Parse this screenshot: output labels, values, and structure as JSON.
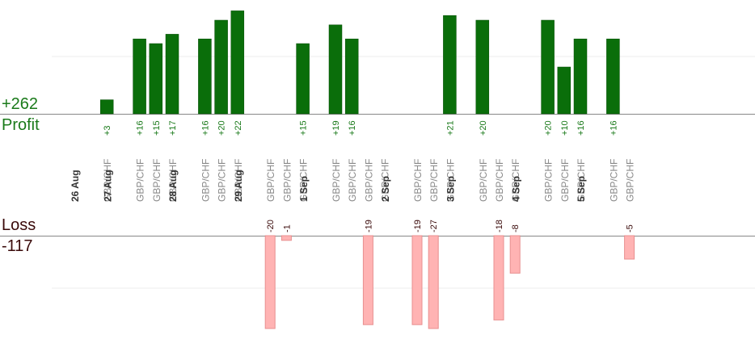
{
  "summary": {
    "profit_label": "Profit",
    "profit_total": "+262",
    "loss_label": "Loss",
    "loss_total": "-117"
  },
  "colors": {
    "profit_bar": "#0a6e0a",
    "profit_text": "#1a7a1a",
    "loss_bar": "#ffb3b3",
    "loss_bar_border": "#e88f8f",
    "loss_text": "#3a0a0a",
    "date_label": "#333333",
    "pair_label": "#888888",
    "axis": "#888888",
    "grid": "#eeeeee"
  },
  "chart_data": {
    "type": "bar",
    "profit_axis_max": 20,
    "loss_axis_max": 20,
    "days": [
      {
        "date": "26 Aug",
        "trades": [
          {
            "pair": "GBP/CHF",
            "profit": 3
          }
        ]
      },
      {
        "date": "27 Aug",
        "trades": [
          {
            "pair": "GBP/CHF",
            "profit": 16
          },
          {
            "pair": "GBP/CHF",
            "profit": 15
          },
          {
            "pair": "GBP/CHF",
            "profit": 17
          }
        ]
      },
      {
        "date": "28 Aug",
        "trades": [
          {
            "pair": "GBP/CHF",
            "profit": 16
          },
          {
            "pair": "GBP/CHF",
            "profit": 20
          },
          {
            "pair": "GBP/CHF",
            "profit": 22
          }
        ]
      },
      {
        "date": "29 Aug",
        "trades": [
          {
            "pair": "GBP/CHF",
            "loss": -20
          },
          {
            "pair": "GBP/CHF",
            "loss": -1
          },
          {
            "pair": "GBP/CHF",
            "profit": 15
          }
        ]
      },
      {
        "date": "1 Sep",
        "trades": [
          {
            "pair": "GBP/CHF",
            "profit": 19
          },
          {
            "pair": "GBP/CHF",
            "profit": 16
          },
          {
            "pair": "GBP/CHF",
            "loss": -19
          },
          {
            "pair": "GBP/CHF"
          }
        ]
      },
      {
        "date": "2 Sep",
        "trades": [
          {
            "pair": "GBP/CHF",
            "loss": -19
          },
          {
            "pair": "GBP/CHF",
            "loss": -27
          },
          {
            "pair": "GBP/CHF",
            "profit": 21
          }
        ]
      },
      {
        "date": "3 Sep",
        "trades": [
          {
            "pair": "GBP/CHF",
            "profit": 20
          },
          {
            "pair": "GBP/CHF",
            "loss": -18
          },
          {
            "pair": "GBP/CHF",
            "loss": -8
          }
        ]
      },
      {
        "date": "4 Sep",
        "trades": [
          {
            "pair": "GBP/CHF",
            "profit": 20
          },
          {
            "pair": "GBP/CHF",
            "profit": 10
          },
          {
            "pair": "GBP/CHF",
            "profit": 16
          }
        ]
      },
      {
        "date": "5 Sep",
        "trades": [
          {
            "pair": "GBP/CHF",
            "profit": 16
          },
          {
            "pair": "GBP/CHF",
            "loss": -5
          }
        ]
      }
    ]
  }
}
